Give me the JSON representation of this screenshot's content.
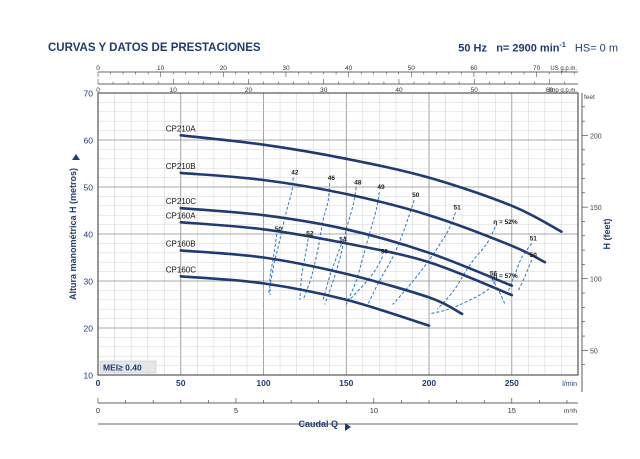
{
  "header": {
    "title": "CURVAS Y DATOS DE PRESTACIONES",
    "freq": "50 Hz",
    "speed": "n= 2900 min",
    "speed_sup": "-1",
    "hs": "HS= 0 m"
  },
  "colors": {
    "curve": "#1f3b73",
    "eff": "#2a78c0",
    "text": "#1f3b73",
    "grid": "#9a9a9a"
  },
  "chart_data": {
    "type": "line",
    "xlabel": "Caudal  Q",
    "ylabel": "Altura manométrica H (metros)",
    "ylabel_right": "H (feet)",
    "xlim": [
      0,
      290
    ],
    "ylim": [
      10,
      70
    ],
    "x_unit": "l/min",
    "x_ticks": [
      0,
      50,
      100,
      150,
      200,
      250
    ],
    "y_ticks": [
      10,
      20,
      30,
      40,
      50,
      60,
      70
    ],
    "m3h_ticks": [
      0,
      5,
      10,
      15
    ],
    "m3h_unit": "m³/h",
    "us_gpm_ticks": [
      0,
      10,
      20,
      30,
      40,
      50,
      60,
      70
    ],
    "us_gpm_unit": "US g.p.m.",
    "imp_gpm_ticks": [
      0,
      10,
      20,
      30,
      40,
      50,
      60
    ],
    "imp_gpm_unit": "Imp g.p.m.",
    "feet_ticks": [
      50,
      100,
      150,
      200
    ],
    "feet_unit": "feet",
    "grid": true,
    "badge": "MEI≥ 0.40",
    "series": [
      {
        "name": "CP210A",
        "x": [
          50,
          100,
          150,
          200,
          250,
          280
        ],
        "y": [
          61,
          59,
          56,
          52,
          46,
          40.5
        ]
      },
      {
        "name": "CP210B",
        "x": [
          50,
          100,
          150,
          200,
          250,
          270
        ],
        "y": [
          53,
          51.5,
          48.5,
          44,
          37.5,
          34
        ]
      },
      {
        "name": "CP210C",
        "x": [
          50,
          100,
          150,
          200,
          250
        ],
        "y": [
          45.5,
          44,
          41,
          36,
          29
        ]
      },
      {
        "name": "CP160A",
        "x": [
          50,
          100,
          150,
          200,
          250
        ],
        "y": [
          42.5,
          41,
          38,
          34,
          27
        ]
      },
      {
        "name": "CP160B",
        "x": [
          50,
          100,
          150,
          200,
          220
        ],
        "y": [
          36.5,
          35,
          31.5,
          26.5,
          23
        ]
      },
      {
        "name": "CP160C",
        "x": [
          50,
          100,
          150,
          200
        ],
        "y": [
          31,
          29.5,
          26,
          20.5
        ]
      }
    ],
    "efficiency_lines": [
      {
        "label": "42",
        "pts": [
          [
            118,
            52
          ],
          [
            117,
            49
          ],
          [
            114,
            45
          ],
          [
            110,
            39
          ],
          [
            106,
            33
          ],
          [
            103,
            27
          ]
        ]
      },
      {
        "label": "46",
        "pts": [
          [
            140,
            50.8
          ],
          [
            139,
            47
          ],
          [
            136,
            43
          ],
          [
            133,
            37
          ],
          [
            129,
            31
          ],
          [
            124,
            26
          ]
        ]
      },
      {
        "label": "48",
        "pts": [
          [
            156,
            49.9
          ],
          [
            154,
            46
          ],
          [
            150,
            41
          ],
          [
            147,
            36
          ],
          [
            143,
            31
          ],
          [
            137,
            25
          ]
        ]
      },
      {
        "label": "49",
        "pts": [
          [
            170,
            48.9
          ],
          [
            168,
            45
          ],
          [
            164,
            40
          ],
          [
            160,
            35
          ],
          [
            156,
            30
          ],
          [
            150,
            25
          ]
        ]
      },
      {
        "label": "50",
        "pts": [
          [
            191,
            47.2
          ],
          [
            188,
            44
          ],
          [
            184,
            40
          ],
          [
            178,
            35
          ],
          [
            170,
            30
          ],
          [
            163,
            25
          ]
        ]
      },
      {
        "label": "51",
        "pts": [
          [
            216,
            44.6
          ],
          [
            212,
            41
          ],
          [
            205,
            37
          ],
          [
            197,
            33
          ],
          [
            188,
            29
          ],
          [
            178,
            25
          ]
        ]
      },
      {
        "label": "η = 52%",
        "pts": [
          [
            240,
            41.5
          ],
          [
            235,
            38
          ],
          [
            228,
            35
          ],
          [
            222,
            32
          ],
          [
            215,
            28
          ],
          [
            205,
            24
          ]
        ]
      },
      {
        "label": "51",
        "pts": [
          [
            262,
            38
          ],
          [
            256,
            35
          ],
          [
            252,
            31.5
          ],
          [
            248,
            28
          ]
        ]
      },
      {
        "label": "50",
        "pts": [
          [
            262,
            34.5
          ],
          [
            258,
            31
          ],
          [
            254,
            28
          ]
        ]
      },
      {
        "label": "50",
        "pts": [
          [
            108,
            40
          ],
          [
            106,
            35
          ],
          [
            104,
            31
          ],
          [
            104,
            27
          ]
        ]
      },
      {
        "label": "52",
        "pts": [
          [
            127,
            39
          ],
          [
            125,
            35
          ],
          [
            123,
            31
          ],
          [
            122,
            26
          ]
        ]
      },
      {
        "label": "54",
        "pts": [
          [
            147,
            37.8
          ],
          [
            143,
            34
          ],
          [
            140,
            31
          ],
          [
            136,
            26
          ]
        ]
      },
      {
        "label": "56",
        "pts": [
          [
            172,
            35.2
          ],
          [
            167,
            32
          ],
          [
            160,
            29
          ],
          [
            152,
            26
          ]
        ]
      },
      {
        "label": "η = 57%",
        "pts": [
          [
            240,
            30
          ],
          [
            235,
            28
          ],
          [
            225,
            26
          ],
          [
            212,
            24
          ],
          [
            200,
            23
          ]
        ]
      },
      {
        "label": "56",
        "pts": [
          [
            238,
            30.5
          ],
          [
            242,
            28
          ],
          [
            246,
            25
          ]
        ]
      }
    ]
  }
}
